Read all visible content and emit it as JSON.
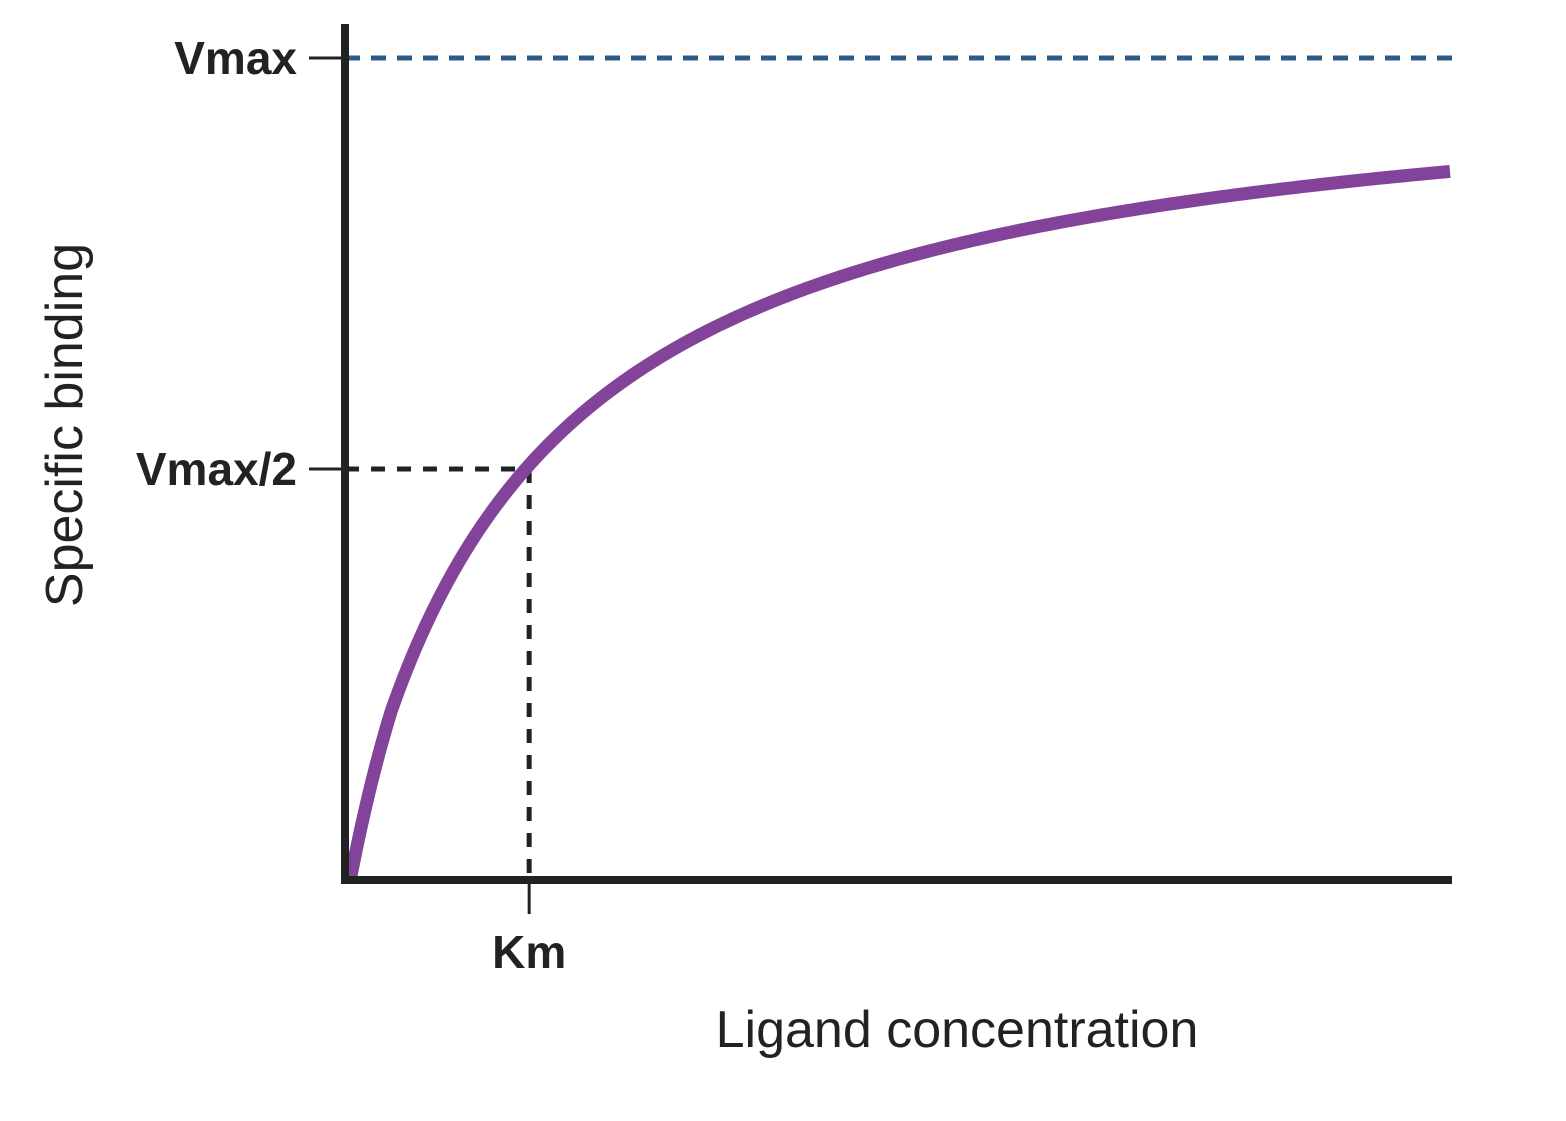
{
  "chart_data": {
    "type": "line",
    "title": "",
    "xlabel": "Ligand concentration",
    "ylabel": "Specific binding",
    "xlim": [
      0,
      6
    ],
    "ylim": [
      0,
      1
    ],
    "grid": false,
    "legend": "none",
    "model": "michaelis-menten",
    "vmax": 1,
    "km": 1,
    "series": [
      {
        "color": "#84439b",
        "x": [
          0,
          0.05,
          0.1,
          0.2,
          0.35,
          0.5,
          0.75,
          1,
          1.25,
          1.5,
          2,
          2.5,
          3,
          3.5,
          4,
          4.5,
          5,
          5.5,
          6
        ],
        "y": [
          0,
          0.048,
          0.091,
          0.167,
          0.259,
          0.333,
          0.429,
          0.5,
          0.556,
          0.6,
          0.667,
          0.714,
          0.75,
          0.778,
          0.8,
          0.818,
          0.833,
          0.846,
          0.857
        ]
      }
    ],
    "y_ticks": [
      {
        "value": 1,
        "label": "Vmax"
      },
      {
        "value": 0.5,
        "label": "Vmax/2"
      }
    ],
    "x_ticks": [
      {
        "value": 1,
        "label": "Km"
      }
    ],
    "reference_lines": [
      {
        "kind": "horizontal",
        "value": 1,
        "style": "dashed",
        "color": "#2e5b86"
      },
      {
        "kind": "horizontal-to-curve",
        "value": 0.5,
        "style": "dashed",
        "color": "#222222"
      },
      {
        "kind": "vertical-to-curve",
        "value": 1,
        "style": "dashed",
        "color": "#222222"
      }
    ],
    "axis_color": "#222222"
  }
}
